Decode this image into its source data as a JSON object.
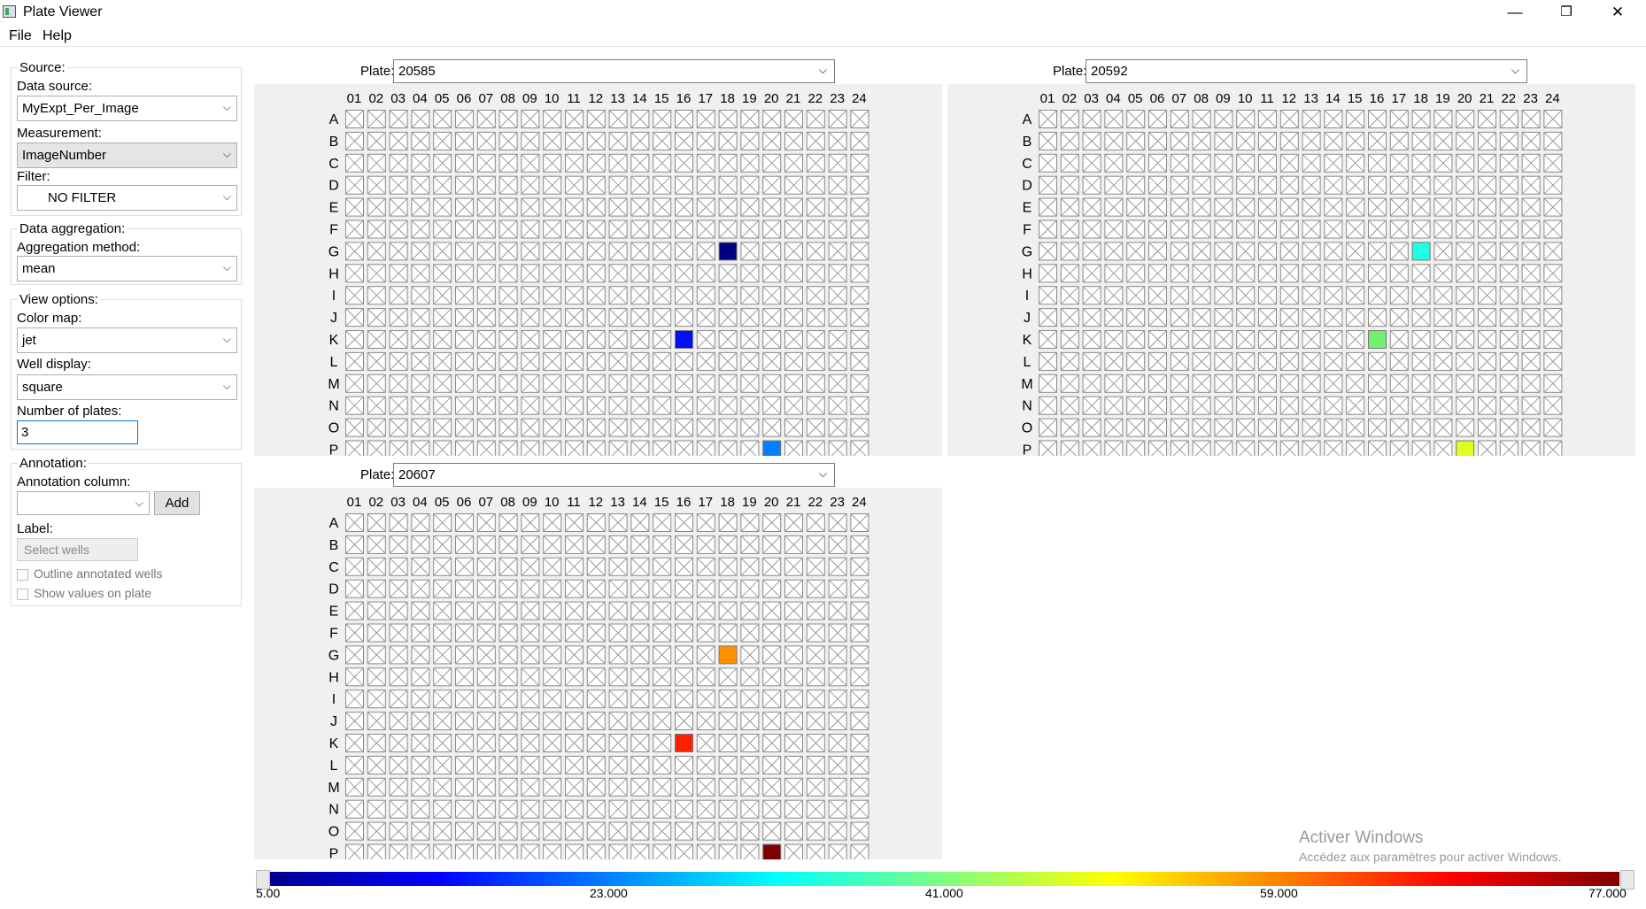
{
  "window": {
    "title": "Plate Viewer",
    "minimize": "—",
    "restore": "❐",
    "close": "✕"
  },
  "menu": [
    "File",
    "Help"
  ],
  "source": {
    "legend": "Source:",
    "data_source_label": "Data source:",
    "data_source_value": "MyExpt_Per_Image",
    "measurement_label": "Measurement:",
    "measurement_value": "ImageNumber",
    "filter_label": "Filter:",
    "filter_value": "NO FILTER"
  },
  "aggregation": {
    "legend": "Data aggregation:",
    "method_label": "Aggregation method:",
    "method_value": "mean"
  },
  "view": {
    "legend": "View options:",
    "colormap_label": "Color map:",
    "colormap_value": "jet",
    "well_display_label": "Well display:",
    "well_display_value": "square",
    "num_plates_label": "Number of plates:",
    "num_plates_value": "3"
  },
  "annotation": {
    "legend": "Annotation:",
    "column_label": "Annotation column:",
    "column_value": "",
    "add_label": "Add",
    "label_label": "Label:",
    "label_placeholder": "Select wells",
    "outline_label": "Outline annotated wells",
    "show_values_label": "Show values on plate"
  },
  "plate_label": "Plate:",
  "columns": [
    "01",
    "02",
    "03",
    "04",
    "05",
    "06",
    "07",
    "08",
    "09",
    "10",
    "11",
    "12",
    "13",
    "14",
    "15",
    "16",
    "17",
    "18",
    "19",
    "20",
    "21",
    "22",
    "23",
    "24"
  ],
  "rows": [
    "A",
    "B",
    "C",
    "D",
    "E",
    "F",
    "G",
    "H",
    "I",
    "J",
    "K",
    "L",
    "M",
    "N",
    "O",
    "P"
  ],
  "plates": [
    {
      "id": "20585",
      "wells": [
        {
          "row": "G",
          "col": "18",
          "color": "#000080"
        },
        {
          "row": "K",
          "col": "16",
          "color": "#0010ff"
        },
        {
          "row": "P",
          "col": "20",
          "color": "#0080ff"
        }
      ]
    },
    {
      "id": "20592",
      "wells": [
        {
          "row": "G",
          "col": "18",
          "color": "#20ffe0"
        },
        {
          "row": "K",
          "col": "16",
          "color": "#70f070"
        },
        {
          "row": "P",
          "col": "20",
          "color": "#e0ff20"
        }
      ]
    },
    {
      "id": "20607",
      "wells": [
        {
          "row": "G",
          "col": "18",
          "color": "#ff9000"
        },
        {
          "row": "K",
          "col": "16",
          "color": "#ff2000"
        },
        {
          "row": "P",
          "col": "20",
          "color": "#800000"
        }
      ]
    }
  ],
  "colorbar": {
    "ticks": [
      "5.00",
      "23.000",
      "41.000",
      "59.000",
      "77.000"
    ]
  },
  "watermark": {
    "line1": "Activer Windows",
    "line2": "Accédez aux paramètres pour activer Windows."
  }
}
